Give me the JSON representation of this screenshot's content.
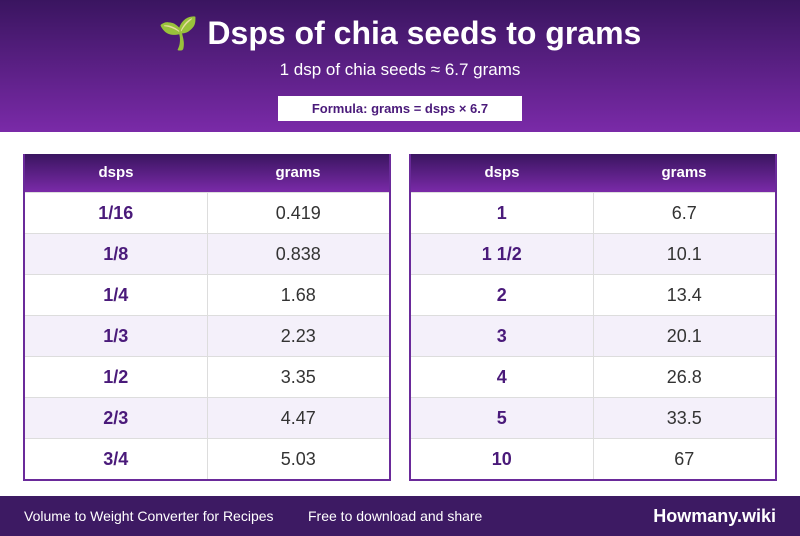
{
  "header": {
    "icon": "🌱",
    "title": "Dsps of chia seeds to grams",
    "subtitle": "1 dsp of chia seeds ≈ 6.7 grams",
    "formula": "Formula: grams = dsps × 6.7"
  },
  "tables": [
    {
      "columns": [
        "dsps",
        "grams"
      ],
      "rows": [
        [
          "1/16",
          "0.419"
        ],
        [
          "1/8",
          "0.838"
        ],
        [
          "1/4",
          "1.68"
        ],
        [
          "1/3",
          "2.23"
        ],
        [
          "1/2",
          "3.35"
        ],
        [
          "2/3",
          "4.47"
        ],
        [
          "3/4",
          "5.03"
        ]
      ]
    },
    {
      "columns": [
        "dsps",
        "grams"
      ],
      "rows": [
        [
          "1",
          "6.7"
        ],
        [
          "1 1/2",
          "10.1"
        ],
        [
          "2",
          "13.4"
        ],
        [
          "3",
          "20.1"
        ],
        [
          "4",
          "26.8"
        ],
        [
          "5",
          "33.5"
        ],
        [
          "10",
          "67"
        ]
      ]
    }
  ],
  "footer": {
    "left": "Volume to Weight Converter for Recipes",
    "middle": "Free to download and share",
    "brand": "Howmany.wiki"
  }
}
